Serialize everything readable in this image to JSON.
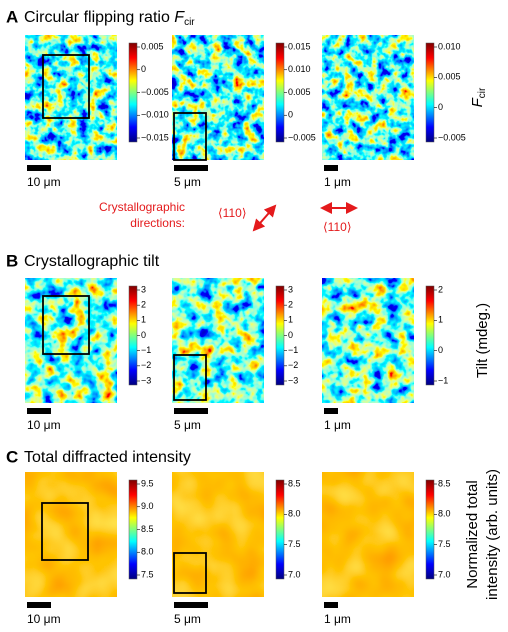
{
  "panels": [
    {
      "letter": "A",
      "title": "Circular flipping ratio ",
      "title_symbol": "F",
      "title_subscript": "cir",
      "axis_label_symbol": "F",
      "axis_label_subscript": "cir",
      "maps": [
        {
          "scale_bar": "10 μm",
          "colorbar_ticks": [
            "0.005",
            "0",
            "−0.005",
            "−0.010",
            "−0.015"
          ]
        },
        {
          "scale_bar": "5 μm",
          "colorbar_ticks": [
            "0.015",
            "0.010",
            "0.005",
            "0",
            "−0.005"
          ]
        },
        {
          "scale_bar": "1 μm",
          "colorbar_ticks": [
            "0.010",
            "0.005",
            "0",
            "−0.005"
          ]
        }
      ]
    },
    {
      "letter": "B",
      "title": "Crystallographic tilt",
      "axis_label": [
        "Tilt (mdeg.)"
      ],
      "maps": [
        {
          "scale_bar": "10 μm",
          "colorbar_ticks": [
            "3",
            "2",
            "1",
            "0",
            "−1",
            "−2",
            "−3"
          ]
        },
        {
          "scale_bar": "5 μm",
          "colorbar_ticks": [
            "3",
            "2",
            "1",
            "0",
            "−1",
            "−2",
            "−3"
          ]
        },
        {
          "scale_bar": "1 μm",
          "colorbar_ticks": [
            "2",
            "1",
            "0",
            "−1"
          ]
        }
      ]
    },
    {
      "letter": "C",
      "title": "Total diffracted intensity",
      "axis_label": [
        "Normalized total",
        "intensity (arb. units)"
      ],
      "maps": [
        {
          "scale_bar": "10 μm",
          "colorbar_ticks": [
            "9.5",
            "9.0",
            "8.5",
            "8.0",
            "7.5"
          ]
        },
        {
          "scale_bar": "5 μm",
          "colorbar_ticks": [
            "8.5",
            "8.0",
            "7.5",
            "7.0"
          ]
        },
        {
          "scale_bar": "1 μm",
          "colorbar_ticks": [
            "8.5",
            "8.0",
            "7.5",
            "7.0"
          ]
        }
      ]
    }
  ],
  "directions": {
    "label_line1": "Crystallographic",
    "label_line2": "directions:",
    "dir1": "⟨110⟩",
    "dir2": "⟨110⟩"
  }
}
